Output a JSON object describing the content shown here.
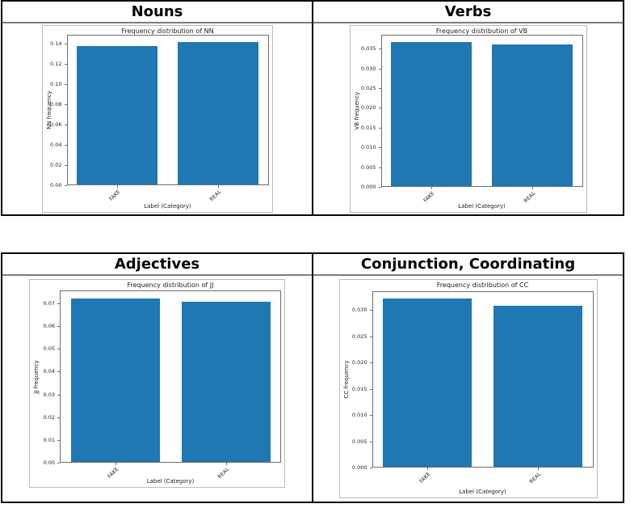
{
  "tables": [
    {
      "cells": [
        {
          "header": "Nouns"
        },
        {
          "header": "Verbs"
        }
      ]
    },
    {
      "cells": [
        {
          "header": "Adjectives"
        },
        {
          "header": "Conjunction, Coordinating"
        }
      ]
    }
  ],
  "chart_data": [
    {
      "type": "bar",
      "title": "Frequency distribution of NN",
      "xlabel": "Label (Category)",
      "ylabel": "NN frequency",
      "categories": [
        "FAKE",
        "REAL"
      ],
      "values": [
        0.1372,
        0.1415
      ],
      "ylim": [
        0,
        0.1486
      ],
      "yticks": [
        0,
        0.02,
        0.04,
        0.06,
        0.08,
        0.1,
        0.12,
        0.14
      ],
      "ytick_labels": [
        "0.00",
        "0.02",
        "0.04",
        "0.06",
        "0.08",
        "0.10",
        "0.12",
        "0.14"
      ],
      "xtick_rotation": 45,
      "bar_color": "#1f77b4",
      "grid": false,
      "legend": false
    },
    {
      "type": "bar",
      "title": "Frequency distribution of VB",
      "xlabel": "Label (Category)",
      "ylabel": "VB frequency",
      "categories": [
        "FAKE",
        "REAL"
      ],
      "values": [
        0.0366,
        0.0361
      ],
      "ylim": [
        0,
        0.0385
      ],
      "yticks": [
        0,
        0.005,
        0.01,
        0.015,
        0.02,
        0.025,
        0.03,
        0.035
      ],
      "ytick_labels": [
        "0.000",
        "0.005",
        "0.010",
        "0.015",
        "0.020",
        "0.025",
        "0.030",
        "0.035"
      ],
      "xtick_rotation": 45,
      "bar_color": "#1f77b4",
      "grid": false,
      "legend": false
    },
    {
      "type": "bar",
      "title": "Frequency distribution of JJ",
      "xlabel": "Label (Category)",
      "ylabel": "JJ frequency",
      "categories": [
        "FAKE",
        "REAL"
      ],
      "values": [
        0.072,
        0.0705
      ],
      "ylim": [
        0,
        0.0756
      ],
      "yticks": [
        0,
        0.01,
        0.02,
        0.03,
        0.04,
        0.05,
        0.06,
        0.07
      ],
      "ytick_labels": [
        "0.00",
        "0.01",
        "0.02",
        "0.03",
        "0.04",
        "0.05",
        "0.06",
        "0.07"
      ],
      "xtick_rotation": 45,
      "bar_color": "#1f77b4",
      "grid": false,
      "legend": false
    },
    {
      "type": "bar",
      "title": "Frequency distribution of CC",
      "xlabel": "Label (Category)",
      "ylabel": "CC frequency",
      "categories": [
        "FAKE",
        "REAL"
      ],
      "values": [
        0.0322,
        0.0309
      ],
      "ylim": [
        0,
        0.0336
      ],
      "yticks": [
        0,
        0.005,
        0.01,
        0.015,
        0.02,
        0.025,
        0.03
      ],
      "ytick_labels": [
        "0.000",
        "0.005",
        "0.010",
        "0.015",
        "0.020",
        "0.025",
        "0.030"
      ],
      "xtick_rotation": 45,
      "bar_color": "#1f77b4",
      "grid": false,
      "legend": false
    }
  ]
}
